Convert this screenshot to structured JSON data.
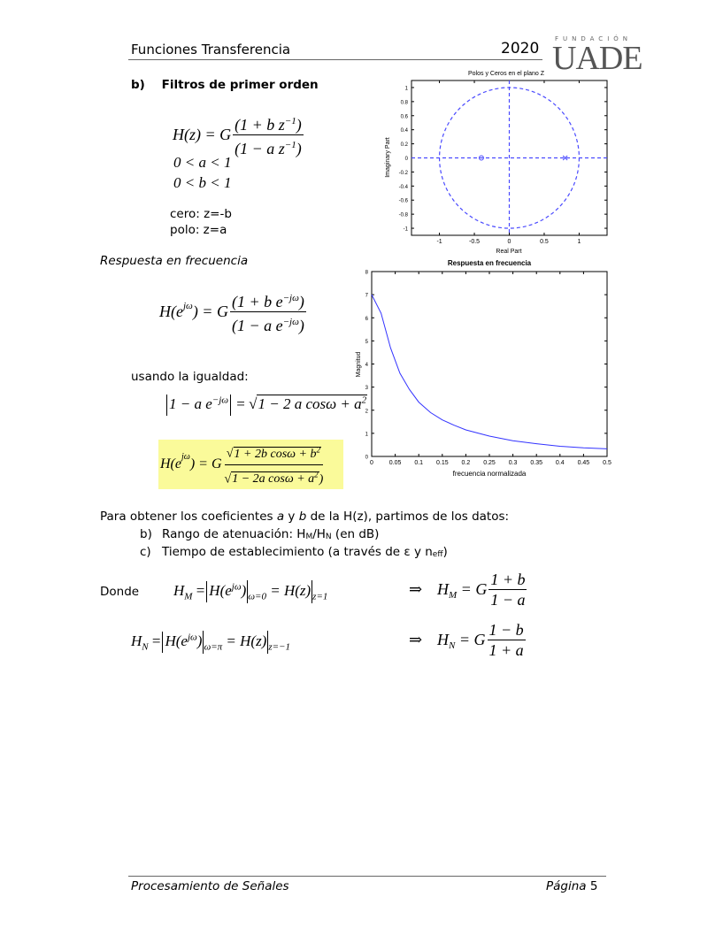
{
  "header": {
    "title": "Funciones Transferencia",
    "year": "2020",
    "logo_top": "FUNDACIÓN",
    "logo_main": "UADE"
  },
  "section": {
    "label": "b)",
    "title": "Filtros de primer orden"
  },
  "hz": {
    "lhs": "H(z) = G",
    "num": "(1 + b z",
    "num_exp": "−1",
    "num_close": ")",
    "den": "(1 − a z",
    "den_exp": "−1",
    "den_close": ")"
  },
  "conditions": [
    "0 < a < 1",
    "0 < b < 1"
  ],
  "zero_label": "cero: z=-b",
  "pole_label": "polo: z=a",
  "freq_heading": "Respuesta en frecuencia",
  "hejw": {
    "lhs": "H(e",
    "lhs_exp": "jω",
    "lhs_close": ") = G",
    "num": "(1 + b e",
    "num_exp": "−jω",
    "num_close": ")",
    "den": "(1 − a e",
    "den_exp": "−jω",
    "den_close": ")"
  },
  "using_text": "usando la igualdad:",
  "identity": {
    "lhs": "1 − a e",
    "lhs_exp": "−jω",
    "eq": "=",
    "rhs": "1 − 2 a cosω + a",
    "rhs_exp": "2"
  },
  "highlight": {
    "lhs": "H(e",
    "lhs_exp": "jω",
    "lhs_close": ") = G",
    "num": "1 + 2b cosω + b",
    "num_exp": "2",
    "den": "1 − 2a cosω + a",
    "den_exp": "2",
    "den_close": ")"
  },
  "paragraph": {
    "pre": "Para obtener los coeficientes ",
    "a": "a",
    "mid": " y ",
    "b": "b",
    "post": " de la H(z), partimos de los datos:"
  },
  "list": [
    {
      "label": "b)",
      "text": "Rango de atenuación: H",
      "sub1": "M",
      "text2": "/H",
      "sub2": "N",
      "text3": " (en dB)"
    },
    {
      "label": "c)",
      "text": "Tiempo de establecimiento (a través de ε y n",
      "sub1": "eff",
      "text2": ")"
    }
  ],
  "donde": "Donde",
  "hm": {
    "lhs": "H",
    "lhs_sub": "M",
    "eq": "=",
    "mid": "H(e",
    "mid_exp": "jω",
    "mid_close": ")",
    "eval": "ω=0",
    "eq2": "= H(z)",
    "eval2": "z=1",
    "arrow": "⇒",
    "res": "H",
    "res_sub": "M",
    "res_eq": "= G",
    "num": "1 + b",
    "den": "1 − a"
  },
  "hn": {
    "lhs": "H",
    "lhs_sub": "N",
    "eq": "=",
    "mid": "H(e",
    "mid_exp": "jω",
    "mid_close": ")",
    "eval": "ω=π",
    "eq2": "= H(z)",
    "eval2": "z=−1",
    "arrow": "⇒",
    "res": "H",
    "res_sub": "N",
    "res_eq": "= G",
    "num": "1 − b",
    "den": "1 + a"
  },
  "footer": {
    "left": "Procesamiento de Señales",
    "right_label": "Página",
    "right_num": "5"
  },
  "chart_data": [
    {
      "type": "scatter",
      "title": "Polos y Ceros en el plano Z",
      "xlabel": "Real Part",
      "ylabel": "Imaginary Part",
      "xlim": [
        -1.4,
        1.4
      ],
      "ylim": [
        -1.1,
        1.1
      ],
      "xticks": [
        "-1",
        "-0.5",
        "0",
        "0.5",
        "1"
      ],
      "xtick_values": [
        -1,
        -0.5,
        0,
        0.5,
        1
      ],
      "yticks": [
        "1",
        "0.8",
        "0.6",
        "0.4",
        "0.2",
        "0",
        "-0.2",
        "-0.4",
        "-0.6",
        "-0.8",
        "-1"
      ],
      "ytick_values": [
        1,
        0.8,
        0.6,
        0.4,
        0.2,
        0,
        -0.2,
        -0.4,
        -0.6,
        -0.8,
        -1
      ],
      "zeros": [
        [
          -0.4,
          0
        ]
      ],
      "poles": [
        [
          0.8,
          0
        ]
      ],
      "unit_circle": true,
      "color": "#4a4aff"
    },
    {
      "type": "line",
      "title": "Respuesta en frecuencia",
      "xlabel": "frecuencia normalizada",
      "ylabel": "Magnitud",
      "xlim": [
        0,
        0.5
      ],
      "ylim": [
        0,
        8
      ],
      "xticks": [
        "0",
        "0.05",
        "0.1",
        "0.15",
        "0.2",
        "0.25",
        "0.3",
        "0.35",
        "0.4",
        "0.45",
        "0.5"
      ],
      "xtick_values": [
        0,
        0.05,
        0.1,
        0.15,
        0.2,
        0.25,
        0.3,
        0.35,
        0.4,
        0.45,
        0.5
      ],
      "yticks": [
        "0",
        "1",
        "2",
        "3",
        "4",
        "5",
        "6",
        "7",
        "8"
      ],
      "ytick_values": [
        0,
        1,
        2,
        3,
        4,
        5,
        6,
        7,
        8
      ],
      "x": [
        0,
        0.02,
        0.04,
        0.06,
        0.08,
        0.1,
        0.125,
        0.15,
        0.175,
        0.2,
        0.25,
        0.3,
        0.35,
        0.4,
        0.45,
        0.5
      ],
      "y": [
        7.0,
        6.2,
        4.7,
        3.6,
        2.9,
        2.35,
        1.9,
        1.58,
        1.35,
        1.15,
        0.88,
        0.68,
        0.55,
        0.44,
        0.37,
        0.33
      ],
      "color": "#3333ff"
    }
  ]
}
